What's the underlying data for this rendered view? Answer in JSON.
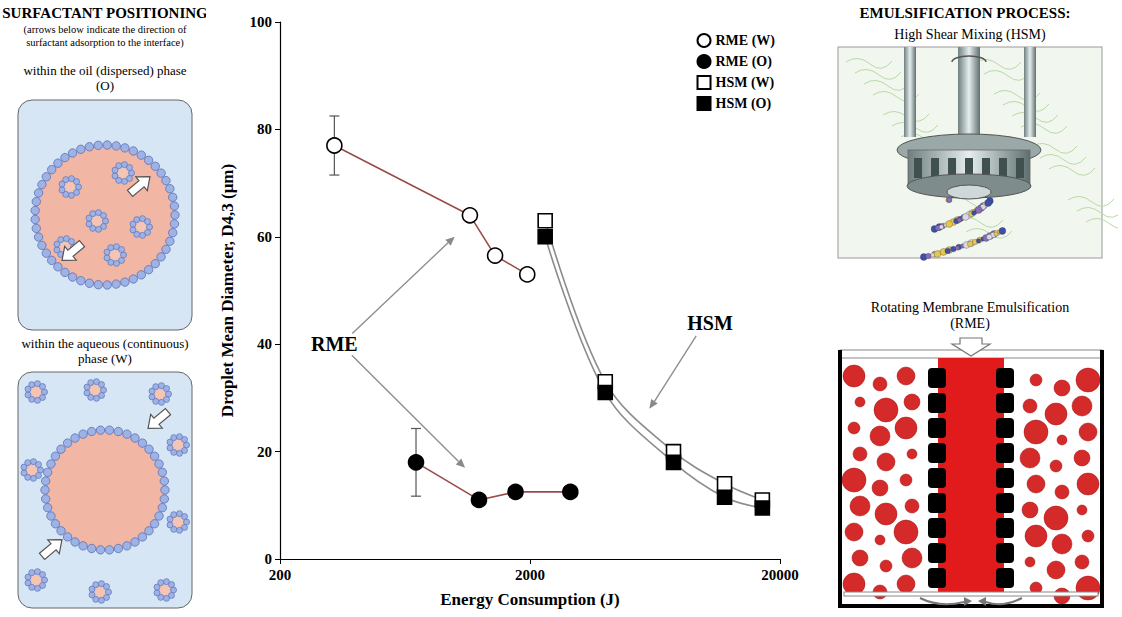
{
  "left_panel": {
    "title": "SURFACTANT POSITIONING",
    "subtitle": "(arrows below indicate the direction of surfactant adsorption to the interface)",
    "panels": [
      {
        "label": "within the oil (dispersed) phase (O)"
      },
      {
        "label": "within the aqueous (continuous) phase (W)"
      }
    ]
  },
  "chart_data": {
    "type": "line",
    "x_label": "Energy Consumption (J)",
    "y_label": "Droplet Mean Diameter, D4,3 (μm)",
    "log": "x",
    "xlim": [
      200,
      20000
    ],
    "xticks": [
      200,
      2000,
      20000
    ],
    "ylim": [
      0,
      100
    ],
    "yticks": [
      0,
      20,
      40,
      60,
      80,
      100
    ],
    "grid": false,
    "legend": "upper right",
    "series": [
      {
        "name": "RME (W)",
        "marker": "circle-open",
        "color": "#000000",
        "x": [
          330,
          1150,
          1450,
          1950
        ],
        "values": [
          77,
          64,
          56.5,
          53
        ],
        "errors": [
          5.5,
          null,
          null,
          null
        ]
      },
      {
        "name": "RME (O)",
        "marker": "circle-filled",
        "color": "#000000",
        "x": [
          700,
          1250,
          1750,
          2900
        ],
        "values": [
          18,
          11,
          12.5,
          12.5
        ],
        "errors": [
          6.3,
          null,
          null,
          null
        ]
      },
      {
        "name": "HSM (W)",
        "marker": "square-open",
        "color": "#000000",
        "x": [
          2300,
          4000,
          7500,
          12000,
          17000
        ],
        "values": [
          63,
          33,
          20,
          14,
          11
        ]
      },
      {
        "name": "HSM (O)",
        "marker": "square-filled",
        "color": "#000000",
        "x": [
          2300,
          4000,
          7500,
          12000,
          17000
        ],
        "values": [
          60,
          31,
          18,
          11.5,
          9.5
        ]
      }
    ],
    "annotations": [
      {
        "text": "RME",
        "x": 330,
        "y": 40,
        "arrows": [
          [
            1000,
            60
          ],
          [
            1100,
            17
          ]
        ]
      },
      {
        "text": "HSM",
        "x": 10500,
        "y": 44,
        "arrows": [
          [
            6000,
            28
          ]
        ]
      }
    ]
  },
  "right_panel": {
    "title": "EMULSIFICATION PROCESS:",
    "panels": [
      {
        "label": "High Shear Mixing (HSM)"
      },
      {
        "label": "Rotating Membrane Emulsification (RME)"
      }
    ]
  }
}
